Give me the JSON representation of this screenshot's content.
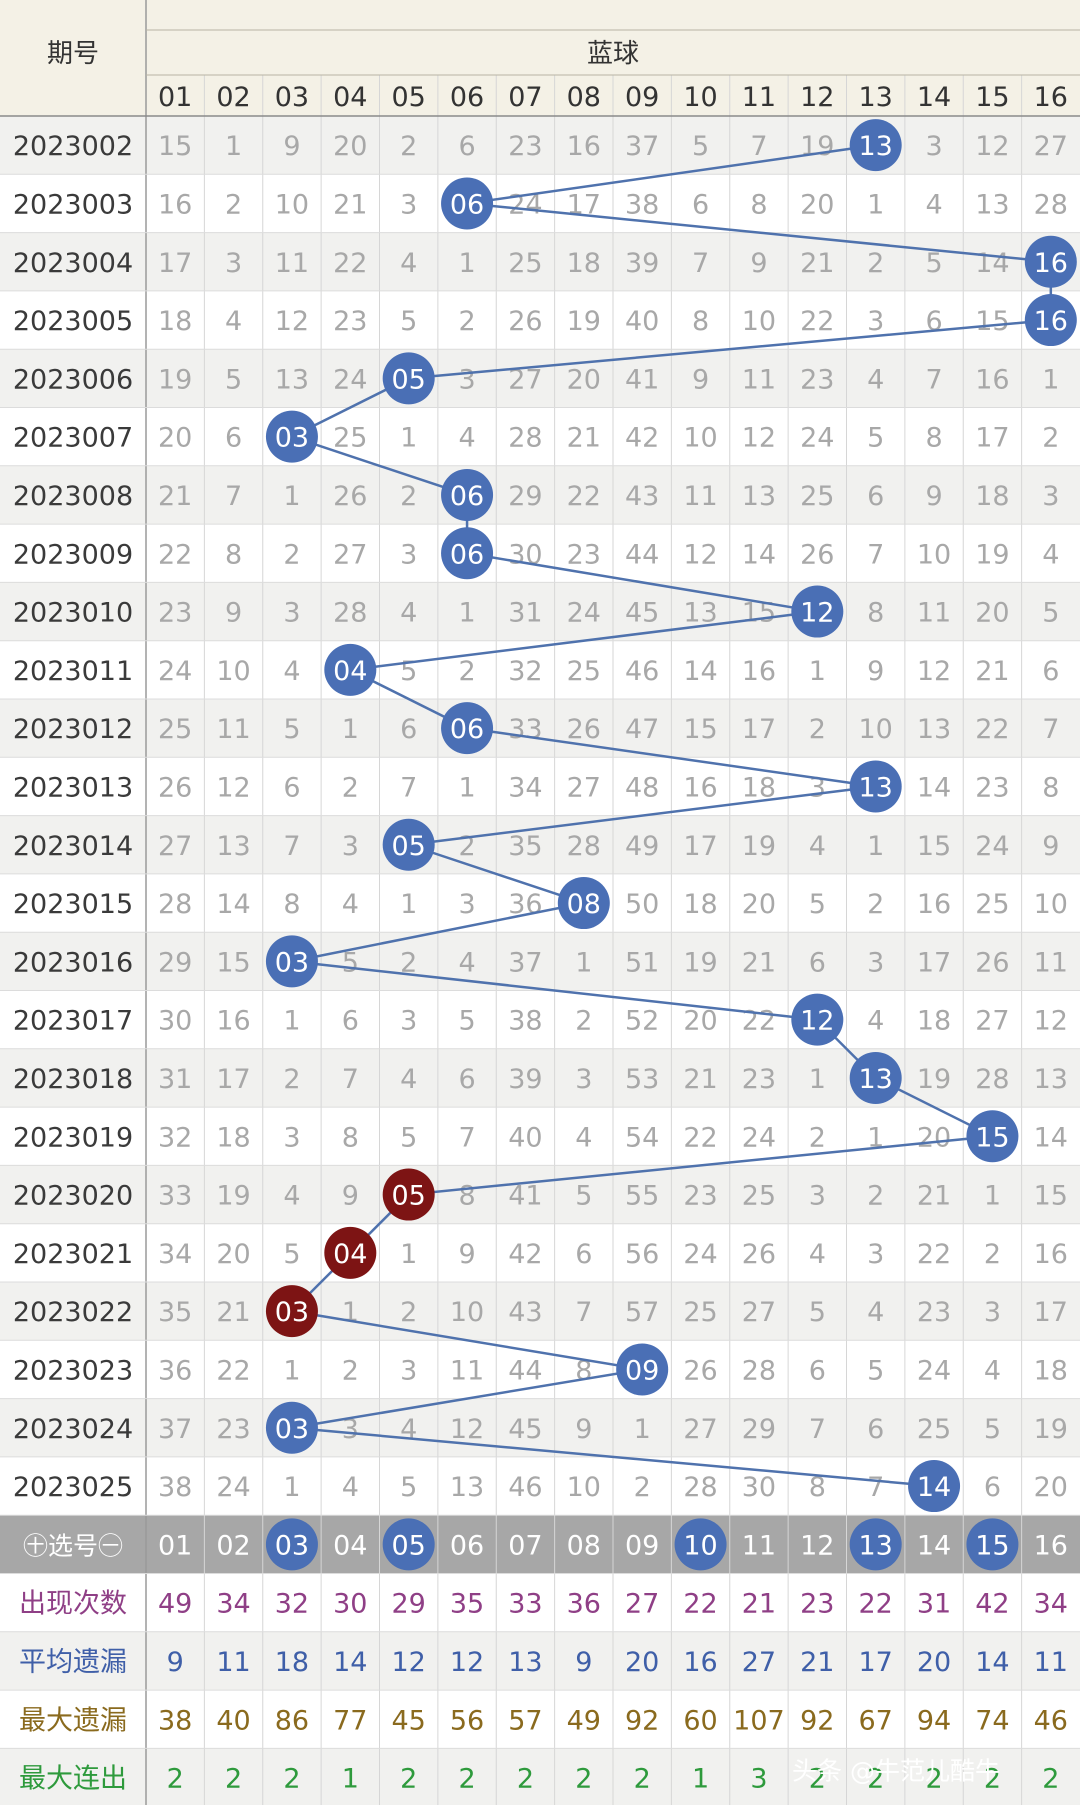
{
  "header": {
    "issue_col_title": "期号",
    "group_title": "蓝球",
    "numbers": [
      "01",
      "02",
      "03",
      "04",
      "05",
      "06",
      "07",
      "08",
      "09",
      "10",
      "11",
      "12",
      "13",
      "14",
      "15",
      "16"
    ]
  },
  "rows": [
    {
      "issue": "2023002",
      "hit": "13",
      "cells": [
        "15",
        "1",
        "9",
        "20",
        "2",
        "6",
        "23",
        "16",
        "37",
        "5",
        "7",
        "19",
        "13",
        "3",
        "12",
        "27"
      ]
    },
    {
      "issue": "2023003",
      "hit": "06",
      "cells": [
        "16",
        "2",
        "10",
        "21",
        "3",
        "06",
        "24",
        "17",
        "38",
        "6",
        "8",
        "20",
        "1",
        "4",
        "13",
        "28"
      ]
    },
    {
      "issue": "2023004",
      "hit": "16",
      "cells": [
        "17",
        "3",
        "11",
        "22",
        "4",
        "1",
        "25",
        "18",
        "39",
        "7",
        "9",
        "21",
        "2",
        "5",
        "14",
        "16"
      ]
    },
    {
      "issue": "2023005",
      "hit": "16",
      "cells": [
        "18",
        "4",
        "12",
        "23",
        "5",
        "2",
        "26",
        "19",
        "40",
        "8",
        "10",
        "22",
        "3",
        "6",
        "15",
        "16"
      ]
    },
    {
      "issue": "2023006",
      "hit": "05",
      "cells": [
        "19",
        "5",
        "13",
        "24",
        "05",
        "3",
        "27",
        "20",
        "41",
        "9",
        "11",
        "23",
        "4",
        "7",
        "16",
        "1"
      ]
    },
    {
      "issue": "2023007",
      "hit": "03",
      "cells": [
        "20",
        "6",
        "03",
        "25",
        "1",
        "4",
        "28",
        "21",
        "42",
        "10",
        "12",
        "24",
        "5",
        "8",
        "17",
        "2"
      ]
    },
    {
      "issue": "2023008",
      "hit": "06",
      "cells": [
        "21",
        "7",
        "1",
        "26",
        "2",
        "06",
        "29",
        "22",
        "43",
        "11",
        "13",
        "25",
        "6",
        "9",
        "18",
        "3"
      ]
    },
    {
      "issue": "2023009",
      "hit": "06",
      "cells": [
        "22",
        "8",
        "2",
        "27",
        "3",
        "06",
        "30",
        "23",
        "44",
        "12",
        "14",
        "26",
        "7",
        "10",
        "19",
        "4"
      ]
    },
    {
      "issue": "2023010",
      "hit": "12",
      "cells": [
        "23",
        "9",
        "3",
        "28",
        "4",
        "1",
        "31",
        "24",
        "45",
        "13",
        "15",
        "12",
        "8",
        "11",
        "20",
        "5"
      ]
    },
    {
      "issue": "2023011",
      "hit": "04",
      "cells": [
        "24",
        "10",
        "4",
        "04",
        "5",
        "2",
        "32",
        "25",
        "46",
        "14",
        "16",
        "1",
        "9",
        "12",
        "21",
        "6"
      ]
    },
    {
      "issue": "2023012",
      "hit": "06",
      "cells": [
        "25",
        "11",
        "5",
        "1",
        "6",
        "06",
        "33",
        "26",
        "47",
        "15",
        "17",
        "2",
        "10",
        "13",
        "22",
        "7"
      ]
    },
    {
      "issue": "2023013",
      "hit": "13",
      "cells": [
        "26",
        "12",
        "6",
        "2",
        "7",
        "1",
        "34",
        "27",
        "48",
        "16",
        "18",
        "3",
        "13",
        "14",
        "23",
        "8"
      ]
    },
    {
      "issue": "2023014",
      "hit": "05",
      "cells": [
        "27",
        "13",
        "7",
        "3",
        "05",
        "2",
        "35",
        "28",
        "49",
        "17",
        "19",
        "4",
        "1",
        "15",
        "24",
        "9"
      ]
    },
    {
      "issue": "2023015",
      "hit": "08",
      "cells": [
        "28",
        "14",
        "8",
        "4",
        "1",
        "3",
        "36",
        "08",
        "50",
        "18",
        "20",
        "5",
        "2",
        "16",
        "25",
        "10"
      ]
    },
    {
      "issue": "2023016",
      "hit": "03",
      "cells": [
        "29",
        "15",
        "03",
        "5",
        "2",
        "4",
        "37",
        "1",
        "51",
        "19",
        "21",
        "6",
        "3",
        "17",
        "26",
        "11"
      ]
    },
    {
      "issue": "2023017",
      "hit": "12",
      "cells": [
        "30",
        "16",
        "1",
        "6",
        "3",
        "5",
        "38",
        "2",
        "52",
        "20",
        "22",
        "12",
        "4",
        "18",
        "27",
        "12"
      ]
    },
    {
      "issue": "2023018",
      "hit": "13",
      "cells": [
        "31",
        "17",
        "2",
        "7",
        "4",
        "6",
        "39",
        "3",
        "53",
        "21",
        "23",
        "1",
        "13",
        "19",
        "28",
        "13"
      ]
    },
    {
      "issue": "2023019",
      "hit": "15",
      "cells": [
        "32",
        "18",
        "3",
        "8",
        "5",
        "7",
        "40",
        "4",
        "54",
        "22",
        "24",
        "2",
        "1",
        "20",
        "15",
        "14"
      ]
    },
    {
      "issue": "2023020",
      "hit": "05",
      "hit_color": "dark-red",
      "cells": [
        "33",
        "19",
        "4",
        "9",
        "05",
        "8",
        "41",
        "5",
        "55",
        "23",
        "25",
        "3",
        "2",
        "21",
        "1",
        "15"
      ]
    },
    {
      "issue": "2023021",
      "hit": "04",
      "hit_color": "dark-red",
      "cells": [
        "34",
        "20",
        "5",
        "04",
        "1",
        "9",
        "42",
        "6",
        "56",
        "24",
        "26",
        "4",
        "3",
        "22",
        "2",
        "16"
      ]
    },
    {
      "issue": "2023022",
      "hit": "03",
      "hit_color": "dark-red",
      "cells": [
        "35",
        "21",
        "03",
        "1",
        "2",
        "10",
        "43",
        "7",
        "57",
        "25",
        "27",
        "5",
        "4",
        "23",
        "3",
        "17"
      ]
    },
    {
      "issue": "2023023",
      "hit": "09",
      "cells": [
        "36",
        "22",
        "1",
        "2",
        "3",
        "11",
        "44",
        "8",
        "09",
        "26",
        "28",
        "6",
        "5",
        "24",
        "4",
        "18"
      ]
    },
    {
      "issue": "2023024",
      "hit": "03",
      "cells": [
        "37",
        "23",
        "03",
        "3",
        "4",
        "12",
        "45",
        "9",
        "1",
        "27",
        "29",
        "7",
        "6",
        "25",
        "5",
        "19"
      ]
    },
    {
      "issue": "2023025",
      "hit": "14",
      "cells": [
        "38",
        "24",
        "1",
        "4",
        "5",
        "13",
        "46",
        "10",
        "2",
        "28",
        "30",
        "8",
        "7",
        "14",
        "6",
        "20"
      ]
    }
  ],
  "select_row": {
    "label": "㊉选号㊀",
    "numbers": [
      "01",
      "02",
      "03",
      "04",
      "05",
      "06",
      "07",
      "08",
      "09",
      "10",
      "11",
      "12",
      "13",
      "14",
      "15",
      "16"
    ],
    "selected": [
      "03",
      "05",
      "10",
      "13",
      "15"
    ]
  },
  "stats": [
    {
      "label": "出现次数",
      "color": "#8f3f86",
      "values": [
        "49",
        "34",
        "32",
        "30",
        "29",
        "35",
        "33",
        "36",
        "27",
        "22",
        "21",
        "23",
        "22",
        "31",
        "42",
        "34"
      ]
    },
    {
      "label": "平均遗漏",
      "color": "#3f5fa8",
      "values": [
        "9",
        "11",
        "18",
        "14",
        "12",
        "12",
        "13",
        "9",
        "20",
        "16",
        "27",
        "21",
        "17",
        "20",
        "14",
        "11"
      ]
    },
    {
      "label": "最大遗漏",
      "color": "#8a6a1e",
      "values": [
        "38",
        "40",
        "86",
        "77",
        "45",
        "56",
        "57",
        "49",
        "92",
        "60",
        "107",
        "92",
        "67",
        "94",
        "74",
        "46"
      ]
    },
    {
      "label": "最大连出",
      "color": "#2e9a3c",
      "values": [
        "2",
        "2",
        "2",
        "1",
        "2",
        "2",
        "2",
        "2",
        "2",
        "1",
        "3",
        "2",
        "2",
        "2",
        "2",
        "2"
      ]
    }
  ],
  "watermark": "头条 @牛范儿酷牛",
  "colors": {
    "ball_blue": "#4a6fb5",
    "ball_dark_red": "#7d1414",
    "trend_line": "#4f72ad",
    "header_bg": "#f4f1e6",
    "select_row_bg": "#a7a7a7"
  },
  "chart_data": {
    "type": "table",
    "title": "蓝球",
    "categories": [
      "01",
      "02",
      "03",
      "04",
      "05",
      "06",
      "07",
      "08",
      "09",
      "10",
      "11",
      "12",
      "13",
      "14",
      "15",
      "16"
    ],
    "x": [
      "2023002",
      "2023003",
      "2023004",
      "2023005",
      "2023006",
      "2023007",
      "2023008",
      "2023009",
      "2023010",
      "2023011",
      "2023012",
      "2023013",
      "2023014",
      "2023015",
      "2023016",
      "2023017",
      "2023018",
      "2023019",
      "2023020",
      "2023021",
      "2023022",
      "2023023",
      "2023024",
      "2023025"
    ],
    "series": [
      {
        "values": [
          "13",
          "06",
          "16",
          "16",
          "05",
          "03",
          "06",
          "06",
          "12",
          "04",
          "06",
          "13",
          "05",
          "08",
          "03",
          "12",
          "13",
          "15",
          "05",
          "04",
          "03",
          "09",
          "03",
          "14"
        ]
      }
    ],
    "grid": true
  }
}
